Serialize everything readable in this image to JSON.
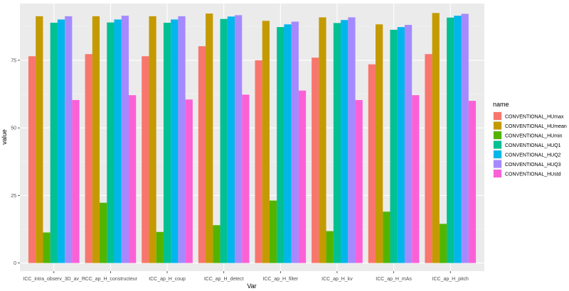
{
  "chart_data": {
    "type": "bar",
    "xlabel": "Var",
    "ylabel": "value",
    "legend_title": "name",
    "legend_position": "right",
    "grid": true,
    "ylim": [
      -3,
      96
    ],
    "yticks": [
      0,
      25,
      50,
      75
    ],
    "categories": [
      "ICC_intra_observ_3D_av_F",
      "ICC_ap_H_constructeur",
      "ICC_ap_H_coup",
      "ICC_ap_H_detect",
      "ICC_ap_H_filter",
      "ICC_ap_H_kv",
      "ICC_ap_H_mAs",
      "ICC_ap_H_pitch"
    ],
    "series": [
      {
        "name": "CONVENTIONAL_HUmax",
        "color": "#F8766D",
        "values": [
          76.5,
          77.3,
          76.5,
          80.2,
          75.0,
          76.0,
          73.5,
          77.3
        ]
      },
      {
        "name": "CONVENTIONAL_HUmean",
        "color": "#C49A00",
        "values": [
          91.3,
          91.3,
          91.3,
          92.3,
          89.6,
          90.9,
          88.3,
          92.5
        ]
      },
      {
        "name": "CONVENTIONAL_HUmin",
        "color": "#53B400",
        "values": [
          11.3,
          22.3,
          11.5,
          14.0,
          23.1,
          11.8,
          19.0,
          14.5
        ]
      },
      {
        "name": "CONVENTIONAL_HUQ1",
        "color": "#00C094",
        "values": [
          88.9,
          89.0,
          88.9,
          90.3,
          87.3,
          88.8,
          86.3,
          90.8
        ]
      },
      {
        "name": "CONVENTIONAL_HUQ2",
        "color": "#00B6EB",
        "values": [
          90.1,
          90.1,
          90.1,
          91.2,
          88.3,
          89.9,
          87.3,
          91.5
        ]
      },
      {
        "name": "CONVENTIONAL_HUQ3",
        "color": "#A58AFF",
        "values": [
          91.3,
          91.5,
          91.3,
          91.7,
          89.3,
          90.9,
          88.1,
          92.2
        ]
      },
      {
        "name": "CONVENTIONAL_HUstd",
        "color": "#FB61D7",
        "values": [
          60.3,
          62.1,
          60.5,
          62.3,
          63.8,
          60.3,
          62.1,
          60.0
        ]
      }
    ]
  }
}
